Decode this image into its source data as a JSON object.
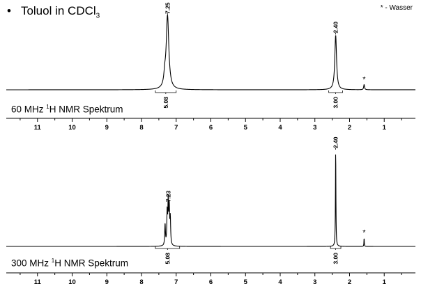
{
  "page": {
    "title_prefix": "Toluol in CDCl",
    "title_subscript": "3",
    "note": "* - Wasser"
  },
  "chart_data": [
    {
      "type": "line",
      "spectrum_label_prefix": "60 MHz ",
      "spectrum_label_sup": "1",
      "spectrum_label_suffix": "H NMR Spektrum",
      "x_axis_reversed": true,
      "xlim": [
        11.9,
        0.1
      ],
      "xticks": [
        11,
        10,
        9,
        8,
        7,
        6,
        5,
        4,
        3,
        2,
        1
      ],
      "peaks": [
        {
          "ppm": 7.25,
          "height": 1.0,
          "width": 0.045,
          "label": "7.25"
        },
        {
          "ppm": 7.33,
          "height": 0.12,
          "width": 0.03,
          "label": ""
        },
        {
          "ppm": 2.4,
          "height": 0.74,
          "width": 0.03,
          "label": "2.40"
        },
        {
          "ppm": 1.58,
          "height": 0.07,
          "width": 0.015,
          "label": "*"
        }
      ],
      "integrals": [
        {
          "from": 7.6,
          "to": 7.0,
          "value": "5.08"
        },
        {
          "from": 2.6,
          "to": 2.2,
          "value": "3.00"
        }
      ]
    },
    {
      "type": "line",
      "spectrum_label_prefix": "300 MHz ",
      "spectrum_label_sup": "1",
      "spectrum_label_suffix": "H NMR Spektrum",
      "x_axis_reversed": true,
      "xlim": [
        11.9,
        0.1
      ],
      "xticks": [
        11,
        10,
        9,
        8,
        7,
        6,
        5,
        4,
        3,
        2,
        1
      ],
      "peaks": [
        {
          "ppm": 7.23,
          "height": 0.44,
          "width": 0.012,
          "label": "7.23"
        },
        {
          "ppm": 7.26,
          "height": 0.33,
          "width": 0.012,
          "label": ""
        },
        {
          "ppm": 7.2,
          "height": 0.37,
          "width": 0.012,
          "label": ""
        },
        {
          "ppm": 7.17,
          "height": 0.27,
          "width": 0.012,
          "label": ""
        },
        {
          "ppm": 7.32,
          "height": 0.22,
          "width": 0.012,
          "label": ""
        },
        {
          "ppm": 2.4,
          "height": 1.0,
          "width": 0.008,
          "label": "2.40"
        },
        {
          "ppm": 1.58,
          "height": 0.09,
          "width": 0.006,
          "label": "*"
        }
      ],
      "integrals": [
        {
          "from": 7.6,
          "to": 6.9,
          "value": "5.08"
        },
        {
          "from": 2.55,
          "to": 2.25,
          "value": "3.00"
        }
      ]
    }
  ]
}
